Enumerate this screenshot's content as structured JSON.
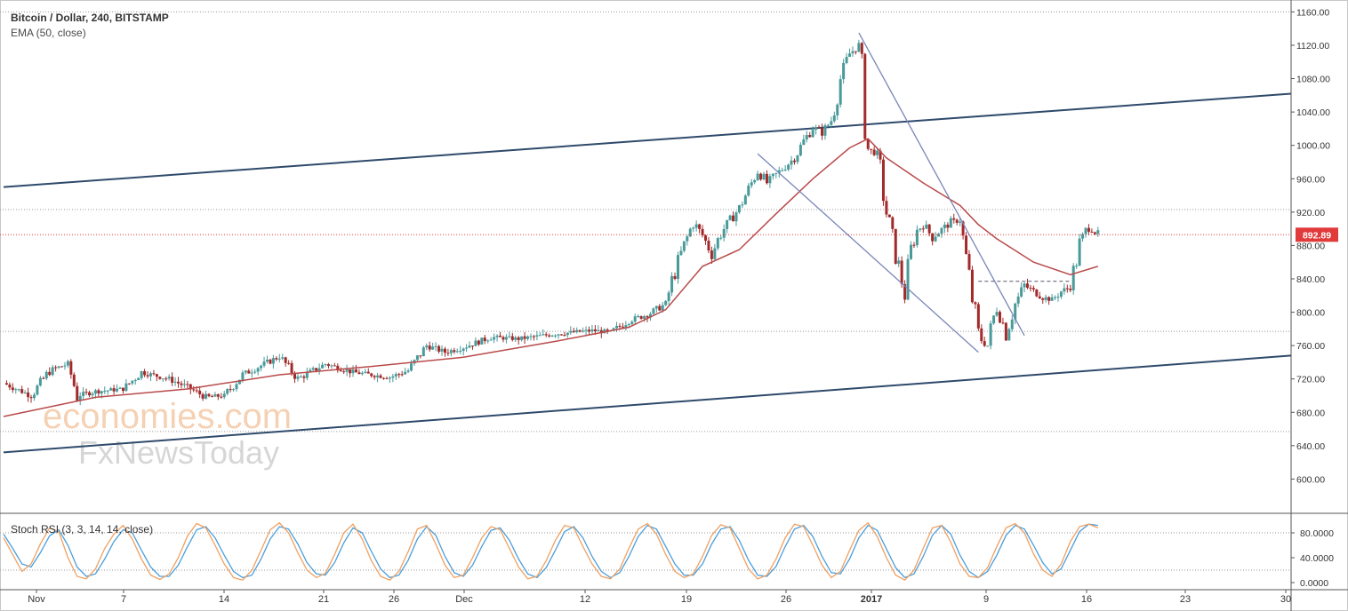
{
  "header": {
    "title": "Bitcoin / Dollar, 240, BITSTAMP",
    "indicator": "EMA (50, close)"
  },
  "stoch": {
    "title": "Stoch RSI (3, 3, 14, 14, close)"
  },
  "watermark": {
    "line1": "economies.com",
    "line2": "FxNewsToday"
  },
  "colors": {
    "up_candle": "#4a9a9a",
    "down_candle": "#a32a2a",
    "ema": "#b94a4a",
    "channel": "#2f4a6b",
    "wedge": "#7a86b8",
    "current_price": "#e03a3a",
    "stoch_k": "#4a9fdc",
    "stoch_d": "#f0a060"
  },
  "chart_data": [
    {
      "type": "candlestick",
      "title": "Bitcoin / Dollar, 240, BITSTAMP",
      "ylim": [
        560,
        1170
      ],
      "y_ticks": [
        600,
        640,
        680,
        720,
        760,
        800,
        840,
        880,
        920,
        960,
        1000,
        1040,
        1080,
        1120,
        1160
      ],
      "y_tick_labels": [
        "600.00",
        "640.00",
        "680.00",
        "720.00",
        "760.00",
        "800.00",
        "840.00",
        "880.00",
        "920.00",
        "960.00",
        "1000.00",
        "1040.00",
        "1080.00",
        "1120.00",
        "1160.00"
      ],
      "x_tick_labels": [
        "Nov",
        "7",
        "14",
        "21",
        "26",
        "Dec",
        "12",
        "19",
        "26",
        "2017",
        "9",
        "16",
        "23",
        "30"
      ],
      "current_price": 892.89,
      "current_price_label": "892.89",
      "horizontal_levels": [
        1160,
        923,
        777,
        657
      ],
      "price_path": [
        [
          0,
          715
        ],
        [
          3,
          700
        ],
        [
          5,
          730
        ],
        [
          7,
          738
        ],
        [
          8,
          700
        ],
        [
          10,
          705
        ],
        [
          13,
          708
        ],
        [
          15,
          728
        ],
        [
          18,
          720
        ],
        [
          20,
          710
        ],
        [
          22,
          698
        ],
        [
          24,
          700
        ],
        [
          26,
          725
        ],
        [
          30,
          747
        ],
        [
          32,
          720
        ],
        [
          35,
          738
        ],
        [
          38,
          728
        ],
        [
          42,
          722
        ],
        [
          44,
          730
        ],
        [
          46,
          760
        ],
        [
          48,
          752
        ],
        [
          50,
          758
        ],
        [
          53,
          770
        ],
        [
          56,
          768
        ],
        [
          60,
          774
        ],
        [
          64,
          778
        ],
        [
          66,
          776
        ],
        [
          68,
          790
        ],
        [
          70,
          797
        ],
        [
          72,
          810
        ],
        [
          73,
          850
        ],
        [
          74,
          880
        ],
        [
          75,
          908
        ],
        [
          76,
          892
        ],
        [
          77,
          870
        ],
        [
          78,
          895
        ],
        [
          80,
          925
        ],
        [
          82,
          970
        ],
        [
          83,
          955
        ],
        [
          84,
          965
        ],
        [
          86,
          985
        ],
        [
          87,
          1005
        ],
        [
          88,
          1022
        ],
        [
          89,
          1015
        ],
        [
          90,
          1030
        ],
        [
          91,
          1080
        ],
        [
          92,
          1110
        ],
        [
          93,
          1120
        ],
        [
          94,
          995
        ],
        [
          95,
          990
        ],
        [
          96,
          920
        ],
        [
          97,
          870
        ],
        [
          98,
          822
        ],
        [
          99,
          895
        ],
        [
          100,
          905
        ],
        [
          101,
          890
        ],
        [
          103,
          908
        ],
        [
          104,
          910
        ],
        [
          105,
          840
        ],
        [
          106,
          770
        ],
        [
          107,
          760
        ],
        [
          108,
          810
        ],
        [
          109,
          775
        ],
        [
          110,
          810
        ],
        [
          111,
          832
        ],
        [
          112,
          825
        ],
        [
          113,
          818
        ],
        [
          114,
          815
        ],
        [
          115,
          825
        ],
        [
          116,
          830
        ],
        [
          117,
          880
        ],
        [
          118,
          905
        ],
        [
          119,
          892.89
        ]
      ],
      "ema_path": [
        [
          0,
          675
        ],
        [
          10,
          698
        ],
        [
          20,
          708
        ],
        [
          30,
          725
        ],
        [
          40,
          735
        ],
        [
          50,
          746
        ],
        [
          60,
          765
        ],
        [
          68,
          782
        ],
        [
          72,
          803
        ],
        [
          76,
          855
        ],
        [
          80,
          875
        ],
        [
          84,
          918
        ],
        [
          88,
          960
        ],
        [
          92,
          997
        ],
        [
          94,
          1008
        ],
        [
          96,
          985
        ],
        [
          100,
          955
        ],
        [
          104,
          928
        ],
        [
          106,
          905
        ],
        [
          108,
          888
        ],
        [
          112,
          860
        ],
        [
          116,
          845
        ],
        [
          119,
          855
        ]
      ],
      "channel_upper": [
        [
          0,
          950
        ],
        [
          140,
          1062
        ]
      ],
      "channel_lower": [
        [
          0,
          632
        ],
        [
          140,
          748
        ]
      ],
      "wedge_upper": [
        [
          93,
          1135
        ],
        [
          111,
          772
        ]
      ],
      "wedge_lower": [
        [
          82,
          990
        ],
        [
          106,
          752
        ]
      ],
      "neckline": [
        [
          106,
          837
        ],
        [
          116,
          837
        ]
      ]
    },
    {
      "type": "line",
      "title": "Stoch RSI (3, 3, 14, 14, close)",
      "ylim": [
        0,
        100
      ],
      "y_ticks": [
        0,
        40,
        80
      ],
      "y_tick_labels": [
        "0.0000",
        "40.0000",
        "80.0000"
      ],
      "levels": [
        80,
        20
      ],
      "series": [
        {
          "values": [
            72,
            45,
            18,
            30,
            62,
            88,
            82,
            40,
            10,
            6,
            22,
            55,
            78,
            92,
            70,
            38,
            12,
            5,
            14,
            40,
            75,
            95,
            88,
            60,
            30,
            8,
            4,
            20,
            52,
            85,
            96,
            80,
            48,
            20,
            8,
            15,
            45,
            80,
            94,
            70,
            35,
            10,
            4,
            18,
            50,
            86,
            92,
            62,
            28,
            8,
            12,
            40,
            72,
            90,
            85,
            55,
            25,
            6,
            10,
            35,
            68,
            92,
            88,
            58,
            30,
            10,
            6,
            22,
            55,
            86,
            95,
            78,
            45,
            18,
            8,
            14,
            42,
            76,
            93,
            88,
            55,
            22,
            6,
            12,
            38,
            72,
            94,
            90,
            60,
            28,
            8,
            18,
            52,
            84,
            96,
            74,
            40,
            12,
            4,
            20,
            55,
            88,
            92,
            65,
            30,
            10,
            8,
            24,
            58,
            88,
            95,
            80,
            46,
            20,
            10,
            30,
            66,
            90,
            94,
            88
          ]
        },
        {
          "values": [
            78,
            55,
            30,
            25,
            48,
            75,
            85,
            60,
            25,
            10,
            14,
            38,
            66,
            85,
            80,
            52,
            25,
            10,
            10,
            28,
            58,
            85,
            90,
            72,
            44,
            18,
            8,
            12,
            38,
            70,
            90,
            86,
            62,
            32,
            14,
            12,
            32,
            64,
            88,
            80,
            50,
            22,
            8,
            12,
            36,
            70,
            90,
            76,
            42,
            16,
            10,
            28,
            58,
            84,
            88,
            68,
            38,
            14,
            8,
            24,
            52,
            82,
            90,
            72,
            42,
            18,
            8,
            16,
            42,
            74,
            92,
            86,
            58,
            30,
            12,
            12,
            30,
            62,
            86,
            90,
            68,
            36,
            12,
            10,
            26,
            58,
            86,
            92,
            74,
            42,
            16,
            14,
            38,
            72,
            92,
            84,
            54,
            24,
            8,
            14,
            42,
            76,
            92,
            78,
            44,
            18,
            8,
            18,
            44,
            76,
            92,
            86,
            60,
            32,
            14,
            22,
            52,
            82,
            94,
            92
          ]
        }
      ]
    }
  ]
}
